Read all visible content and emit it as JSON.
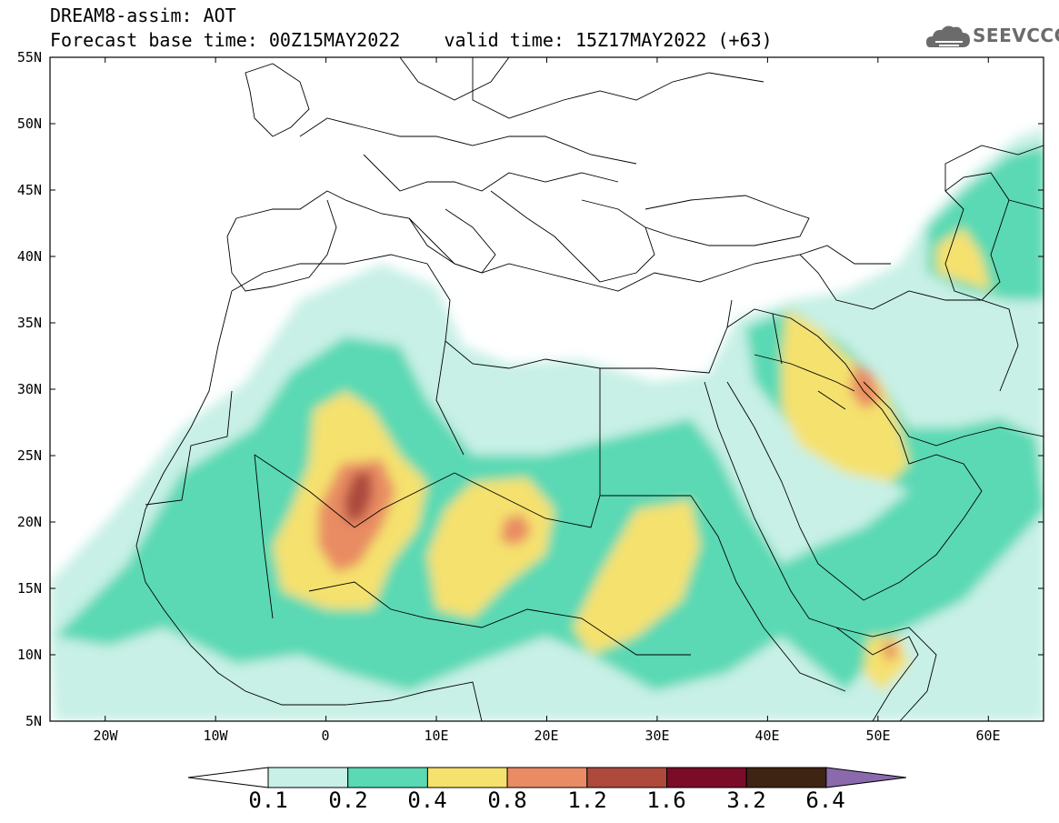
{
  "header": {
    "title_line1": "DREAM8-assim: AOT",
    "title_line2": "Forecast base time: 00Z15MAY2022    valid time: 15Z17MAY2022 (+63)"
  },
  "logo": {
    "text": "SEEVCCC",
    "icon": "cloud-icon"
  },
  "map": {
    "lat_ticks": [
      "55N",
      "50N",
      "45N",
      "40N",
      "35N",
      "30N",
      "25N",
      "20N",
      "15N",
      "10N",
      "5N"
    ],
    "lon_ticks": [
      "20W",
      "10W",
      "0",
      "10E",
      "20E",
      "30E",
      "40E",
      "50E",
      "60E"
    ],
    "lon_range": [
      -25,
      65
    ],
    "lat_range": [
      5,
      55
    ],
    "field": "AOT"
  },
  "colorbar": {
    "labels": [
      "0.1",
      "0.2",
      "0.4",
      "0.8",
      "1.2",
      "1.6",
      "3.2",
      "6.4"
    ],
    "colors": [
      "#ffffff",
      "#c8f0e6",
      "#5ad9b4",
      "#f5e16e",
      "#e98c64",
      "#ad4a3c",
      "#7a0c28",
      "#3d2413",
      "#8a69ad"
    ]
  }
}
